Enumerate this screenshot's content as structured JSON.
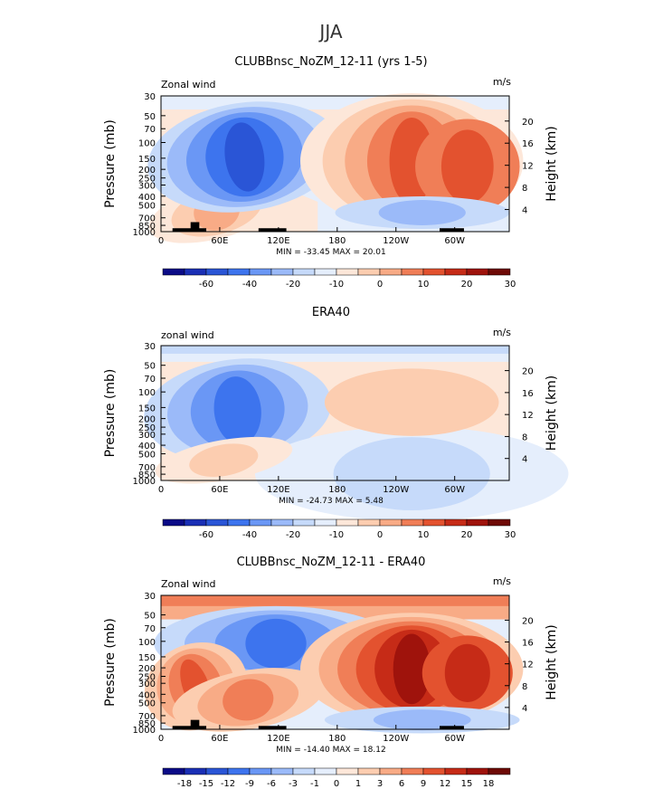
{
  "figure": {
    "title": "JJA"
  },
  "axis_text": {
    "ylabel_left": "Pressure (mb)",
    "ylabel_right": "Height (km)",
    "pressure_ticks": [
      "30",
      "50",
      "70",
      "100",
      "150",
      "200",
      "250",
      "300",
      "400",
      "500",
      "700",
      "850",
      "1000"
    ],
    "height_ticks": [
      "20",
      "16",
      "12",
      "8",
      "4"
    ],
    "x_ticks": [
      "0",
      "60E",
      "120E",
      "180",
      "120W",
      "60W"
    ]
  },
  "chart_data": [
    {
      "type": "heatmap",
      "title": "CLUBBnsc_NoZM_12-11 (yrs 1-5)",
      "corner_left": "Zonal wind",
      "corner_right": "m/s",
      "stats": "MIN = -33.45   MAX =  20.01",
      "min": -33.45,
      "max": 20.01,
      "colorbar": {
        "labels": [
          "-60",
          "-40",
          "-20",
          "-10",
          "0",
          "10",
          "20",
          "30"
        ]
      }
    },
    {
      "type": "heatmap",
      "title": "ERA40",
      "corner_left": "zonal wind",
      "corner_right": "m/s",
      "stats": "MIN = -24.73   MAX =   5.48",
      "min": -24.73,
      "max": 5.48,
      "colorbar": {
        "labels": [
          "-60",
          "-40",
          "-20",
          "-10",
          "0",
          "10",
          "20",
          "30"
        ]
      }
    },
    {
      "type": "heatmap",
      "title": "CLUBBnsc_NoZM_12-11 - ERA40",
      "corner_left": "Zonal wind",
      "corner_right": "m/s",
      "stats": "MIN = -14.40   MAX =  18.12",
      "min": -14.4,
      "max": 18.12,
      "colorbar": {
        "labels": [
          "-18",
          "-15",
          "-12",
          "-9",
          "-6",
          "-3",
          "-1",
          "0",
          "1",
          "3",
          "6",
          "9",
          "12",
          "15",
          "18"
        ]
      }
    }
  ],
  "palette": [
    "#0b0b87",
    "#1a2fb5",
    "#2a55d6",
    "#3d74ee",
    "#6a97f5",
    "#9bbaf9",
    "#c6dafa",
    "#e5eefc",
    "#fde7d9",
    "#fccdb0",
    "#f8ab86",
    "#f07e57",
    "#e3522f",
    "#c62b17",
    "#9f130c",
    "#6e0a06"
  ]
}
